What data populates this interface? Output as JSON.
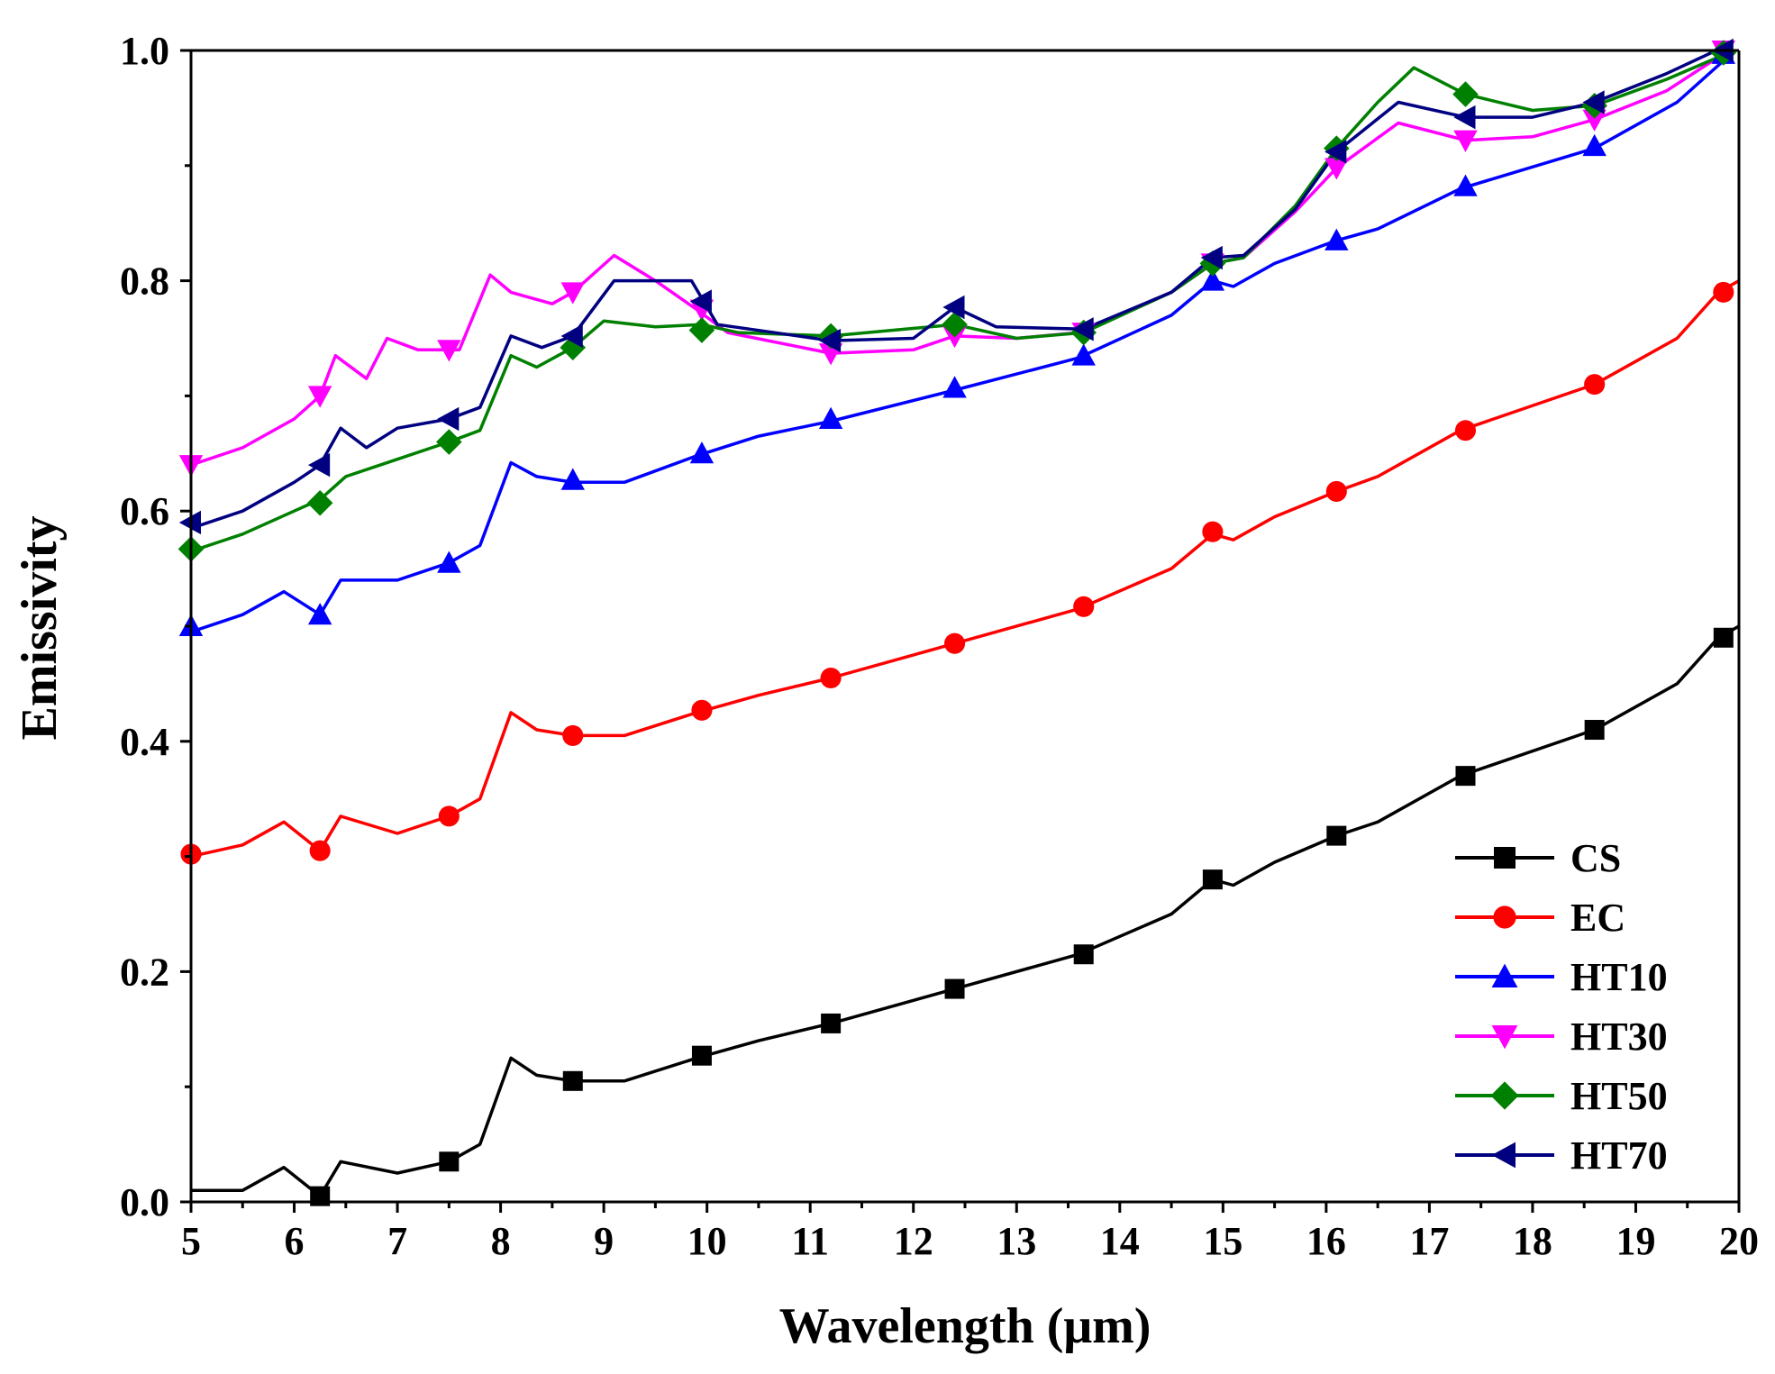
{
  "chart_data": {
    "type": "line",
    "xlabel": "Wavelength (μm)",
    "ylabel": "Emissivity",
    "xlim": [
      5,
      20
    ],
    "ylim": [
      0.0,
      1.0
    ],
    "xticks": [
      "5",
      "6",
      "7",
      "8",
      "9",
      "10",
      "11",
      "12",
      "13",
      "14",
      "15",
      "16",
      "17",
      "18",
      "19",
      "20"
    ],
    "yticks": [
      "0.0",
      "0.2",
      "0.4",
      "0.6",
      "0.8",
      "1.0"
    ],
    "legend_position": "bottom-right",
    "series": [
      {
        "name": "CS",
        "color": "#000000",
        "marker": "square",
        "points": [
          [
            5.0,
            0.01
          ],
          [
            5.5,
            0.01
          ],
          [
            5.9,
            0.03
          ],
          [
            6.25,
            0.005
          ],
          [
            6.45,
            0.035
          ],
          [
            7.0,
            0.025
          ],
          [
            7.5,
            0.035
          ],
          [
            7.8,
            0.05
          ],
          [
            8.1,
            0.125
          ],
          [
            8.35,
            0.11
          ],
          [
            8.7,
            0.105
          ],
          [
            9.2,
            0.105
          ],
          [
            9.9,
            0.125
          ],
          [
            10.5,
            0.14
          ],
          [
            11.2,
            0.155
          ],
          [
            12.4,
            0.185
          ],
          [
            13.6,
            0.215
          ],
          [
            14.5,
            0.25
          ],
          [
            14.9,
            0.28
          ],
          [
            15.1,
            0.275
          ],
          [
            15.5,
            0.295
          ],
          [
            16.1,
            0.318
          ],
          [
            16.5,
            0.33
          ],
          [
            17.3,
            0.37
          ],
          [
            18.6,
            0.41
          ],
          [
            19.4,
            0.45
          ],
          [
            19.8,
            0.49
          ],
          [
            20.0,
            0.5
          ]
        ],
        "markers": [
          [
            6.25,
            0.005
          ],
          [
            7.5,
            0.035
          ],
          [
            8.7,
            0.105
          ],
          [
            9.95,
            0.127
          ],
          [
            11.2,
            0.155
          ],
          [
            12.4,
            0.185
          ],
          [
            13.65,
            0.215
          ],
          [
            14.9,
            0.28
          ],
          [
            16.1,
            0.318
          ],
          [
            17.35,
            0.37
          ],
          [
            18.6,
            0.41
          ],
          [
            19.85,
            0.49
          ]
        ]
      },
      {
        "name": "EC",
        "color": "#ff0000",
        "marker": "circle",
        "points": [
          [
            5.0,
            0.3
          ],
          [
            5.5,
            0.31
          ],
          [
            5.9,
            0.33
          ],
          [
            6.25,
            0.305
          ],
          [
            6.45,
            0.335
          ],
          [
            7.0,
            0.32
          ],
          [
            7.5,
            0.335
          ],
          [
            7.8,
            0.35
          ],
          [
            8.1,
            0.425
          ],
          [
            8.35,
            0.41
          ],
          [
            8.7,
            0.405
          ],
          [
            9.2,
            0.405
          ],
          [
            9.9,
            0.425
          ],
          [
            10.5,
            0.44
          ],
          [
            11.2,
            0.455
          ],
          [
            12.4,
            0.485
          ],
          [
            13.6,
            0.515
          ],
          [
            14.5,
            0.55
          ],
          [
            14.9,
            0.58
          ],
          [
            15.1,
            0.575
          ],
          [
            15.5,
            0.595
          ],
          [
            16.1,
            0.617
          ],
          [
            16.5,
            0.63
          ],
          [
            17.3,
            0.67
          ],
          [
            18.6,
            0.71
          ],
          [
            19.4,
            0.75
          ],
          [
            19.8,
            0.79
          ],
          [
            20.0,
            0.8
          ]
        ],
        "markers": [
          [
            5.0,
            0.302
          ],
          [
            6.25,
            0.305
          ],
          [
            7.5,
            0.335
          ],
          [
            8.7,
            0.405
          ],
          [
            9.95,
            0.427
          ],
          [
            11.2,
            0.455
          ],
          [
            12.4,
            0.485
          ],
          [
            13.65,
            0.517
          ],
          [
            14.9,
            0.582
          ],
          [
            16.1,
            0.617
          ],
          [
            17.35,
            0.67
          ],
          [
            18.6,
            0.71
          ],
          [
            19.85,
            0.79
          ]
        ]
      },
      {
        "name": "HT10",
        "color": "#0000ff",
        "marker": "triangle-up",
        "points": [
          [
            5.0,
            0.495
          ],
          [
            5.5,
            0.51
          ],
          [
            5.9,
            0.53
          ],
          [
            6.25,
            0.51
          ],
          [
            6.45,
            0.54
          ],
          [
            7.0,
            0.54
          ],
          [
            7.5,
            0.555
          ],
          [
            7.8,
            0.57
          ],
          [
            8.1,
            0.642
          ],
          [
            8.35,
            0.63
          ],
          [
            8.7,
            0.625
          ],
          [
            9.2,
            0.625
          ],
          [
            9.9,
            0.648
          ],
          [
            10.5,
            0.665
          ],
          [
            11.2,
            0.678
          ],
          [
            12.4,
            0.705
          ],
          [
            13.6,
            0.733
          ],
          [
            14.5,
            0.77
          ],
          [
            14.9,
            0.8
          ],
          [
            15.1,
            0.795
          ],
          [
            15.5,
            0.815
          ],
          [
            16.1,
            0.835
          ],
          [
            16.5,
            0.845
          ],
          [
            17.3,
            0.88
          ],
          [
            18.6,
            0.915
          ],
          [
            19.4,
            0.955
          ],
          [
            19.9,
            0.995
          ]
        ],
        "markers": [
          [
            5.0,
            0.5
          ],
          [
            6.25,
            0.51
          ],
          [
            7.5,
            0.555
          ],
          [
            8.7,
            0.627
          ],
          [
            9.95,
            0.65
          ],
          [
            11.2,
            0.68
          ],
          [
            12.4,
            0.707
          ],
          [
            13.65,
            0.735
          ],
          [
            14.9,
            0.8
          ],
          [
            16.1,
            0.835
          ],
          [
            17.35,
            0.882
          ],
          [
            18.6,
            0.917
          ],
          [
            19.85,
            0.997
          ]
        ]
      },
      {
        "name": "HT30",
        "color": "#ff00ff",
        "marker": "triangle-down",
        "points": [
          [
            5.0,
            0.64
          ],
          [
            5.5,
            0.655
          ],
          [
            6.0,
            0.68
          ],
          [
            6.25,
            0.7
          ],
          [
            6.4,
            0.735
          ],
          [
            6.7,
            0.715
          ],
          [
            6.9,
            0.75
          ],
          [
            7.2,
            0.74
          ],
          [
            7.6,
            0.74
          ],
          [
            7.9,
            0.805
          ],
          [
            8.1,
            0.79
          ],
          [
            8.5,
            0.78
          ],
          [
            8.7,
            0.79
          ],
          [
            9.1,
            0.822
          ],
          [
            9.5,
            0.8
          ],
          [
            9.9,
            0.775
          ],
          [
            10.2,
            0.755
          ],
          [
            11.2,
            0.737
          ],
          [
            12.0,
            0.74
          ],
          [
            12.4,
            0.752
          ],
          [
            13.0,
            0.75
          ],
          [
            13.6,
            0.755
          ],
          [
            14.5,
            0.79
          ],
          [
            14.9,
            0.815
          ],
          [
            15.2,
            0.82
          ],
          [
            15.7,
            0.86
          ],
          [
            16.1,
            0.898
          ],
          [
            16.7,
            0.937
          ],
          [
            17.35,
            0.922
          ],
          [
            18.0,
            0.925
          ],
          [
            18.6,
            0.94
          ],
          [
            19.3,
            0.965
          ],
          [
            19.9,
            1.0
          ]
        ],
        "markers": [
          [
            5.0,
            0.64
          ],
          [
            6.25,
            0.7
          ],
          [
            7.5,
            0.74
          ],
          [
            8.7,
            0.79
          ],
          [
            9.95,
            0.775
          ],
          [
            11.2,
            0.737
          ],
          [
            12.4,
            0.752
          ],
          [
            13.65,
            0.755
          ],
          [
            14.9,
            0.815
          ],
          [
            16.1,
            0.898
          ],
          [
            17.35,
            0.922
          ],
          [
            18.6,
            0.94
          ],
          [
            19.85,
            1.0
          ]
        ]
      },
      {
        "name": "HT50",
        "color": "#008000",
        "marker": "diamond",
        "points": [
          [
            5.0,
            0.565
          ],
          [
            5.5,
            0.58
          ],
          [
            6.0,
            0.6
          ],
          [
            6.25,
            0.61
          ],
          [
            6.5,
            0.63
          ],
          [
            7.0,
            0.645
          ],
          [
            7.5,
            0.66
          ],
          [
            7.8,
            0.67
          ],
          [
            8.1,
            0.735
          ],
          [
            8.35,
            0.725
          ],
          [
            8.7,
            0.742
          ],
          [
            9.0,
            0.765
          ],
          [
            9.5,
            0.76
          ],
          [
            9.95,
            0.762
          ],
          [
            10.3,
            0.755
          ],
          [
            11.2,
            0.752
          ],
          [
            12.4,
            0.762
          ],
          [
            13.0,
            0.75
          ],
          [
            13.65,
            0.755
          ],
          [
            14.5,
            0.79
          ],
          [
            14.9,
            0.815
          ],
          [
            15.2,
            0.82
          ],
          [
            15.7,
            0.865
          ],
          [
            16.1,
            0.915
          ],
          [
            16.5,
            0.955
          ],
          [
            16.85,
            0.985
          ],
          [
            17.35,
            0.962
          ],
          [
            18.0,
            0.948
          ],
          [
            18.6,
            0.952
          ],
          [
            19.3,
            0.975
          ],
          [
            19.9,
            0.998
          ]
        ],
        "markers": [
          [
            5.0,
            0.567
          ],
          [
            6.25,
            0.607
          ],
          [
            7.5,
            0.66
          ],
          [
            8.7,
            0.742
          ],
          [
            9.95,
            0.757
          ],
          [
            11.2,
            0.752
          ],
          [
            12.4,
            0.762
          ],
          [
            13.65,
            0.755
          ],
          [
            14.9,
            0.815
          ],
          [
            16.1,
            0.915
          ],
          [
            17.35,
            0.962
          ],
          [
            18.6,
            0.952
          ],
          [
            19.85,
            0.998
          ]
        ]
      },
      {
        "name": "HT70",
        "color": "#000080",
        "marker": "triangle-left",
        "points": [
          [
            5.0,
            0.585
          ],
          [
            5.5,
            0.6
          ],
          [
            6.0,
            0.625
          ],
          [
            6.25,
            0.64
          ],
          [
            6.45,
            0.672
          ],
          [
            6.7,
            0.655
          ],
          [
            7.0,
            0.672
          ],
          [
            7.5,
            0.68
          ],
          [
            7.8,
            0.69
          ],
          [
            8.1,
            0.752
          ],
          [
            8.4,
            0.742
          ],
          [
            8.7,
            0.752
          ],
          [
            9.1,
            0.8
          ],
          [
            9.5,
            0.8
          ],
          [
            9.85,
            0.8
          ],
          [
            10.1,
            0.762
          ],
          [
            11.2,
            0.748
          ],
          [
            12.0,
            0.75
          ],
          [
            12.4,
            0.777
          ],
          [
            12.8,
            0.76
          ],
          [
            13.65,
            0.758
          ],
          [
            14.5,
            0.79
          ],
          [
            14.9,
            0.82
          ],
          [
            15.2,
            0.822
          ],
          [
            15.7,
            0.862
          ],
          [
            16.1,
            0.912
          ],
          [
            16.7,
            0.955
          ],
          [
            17.35,
            0.942
          ],
          [
            18.0,
            0.942
          ],
          [
            18.6,
            0.955
          ],
          [
            19.3,
            0.98
          ],
          [
            19.9,
            1.005
          ]
        ],
        "markers": [
          [
            5.0,
            0.59
          ],
          [
            6.25,
            0.64
          ],
          [
            7.5,
            0.68
          ],
          [
            8.7,
            0.752
          ],
          [
            9.95,
            0.782
          ],
          [
            11.2,
            0.748
          ],
          [
            12.4,
            0.777
          ],
          [
            13.65,
            0.758
          ],
          [
            14.9,
            0.82
          ],
          [
            16.1,
            0.912
          ],
          [
            17.35,
            0.942
          ],
          [
            18.6,
            0.955
          ],
          [
            19.85,
            1.005
          ]
        ]
      }
    ]
  }
}
